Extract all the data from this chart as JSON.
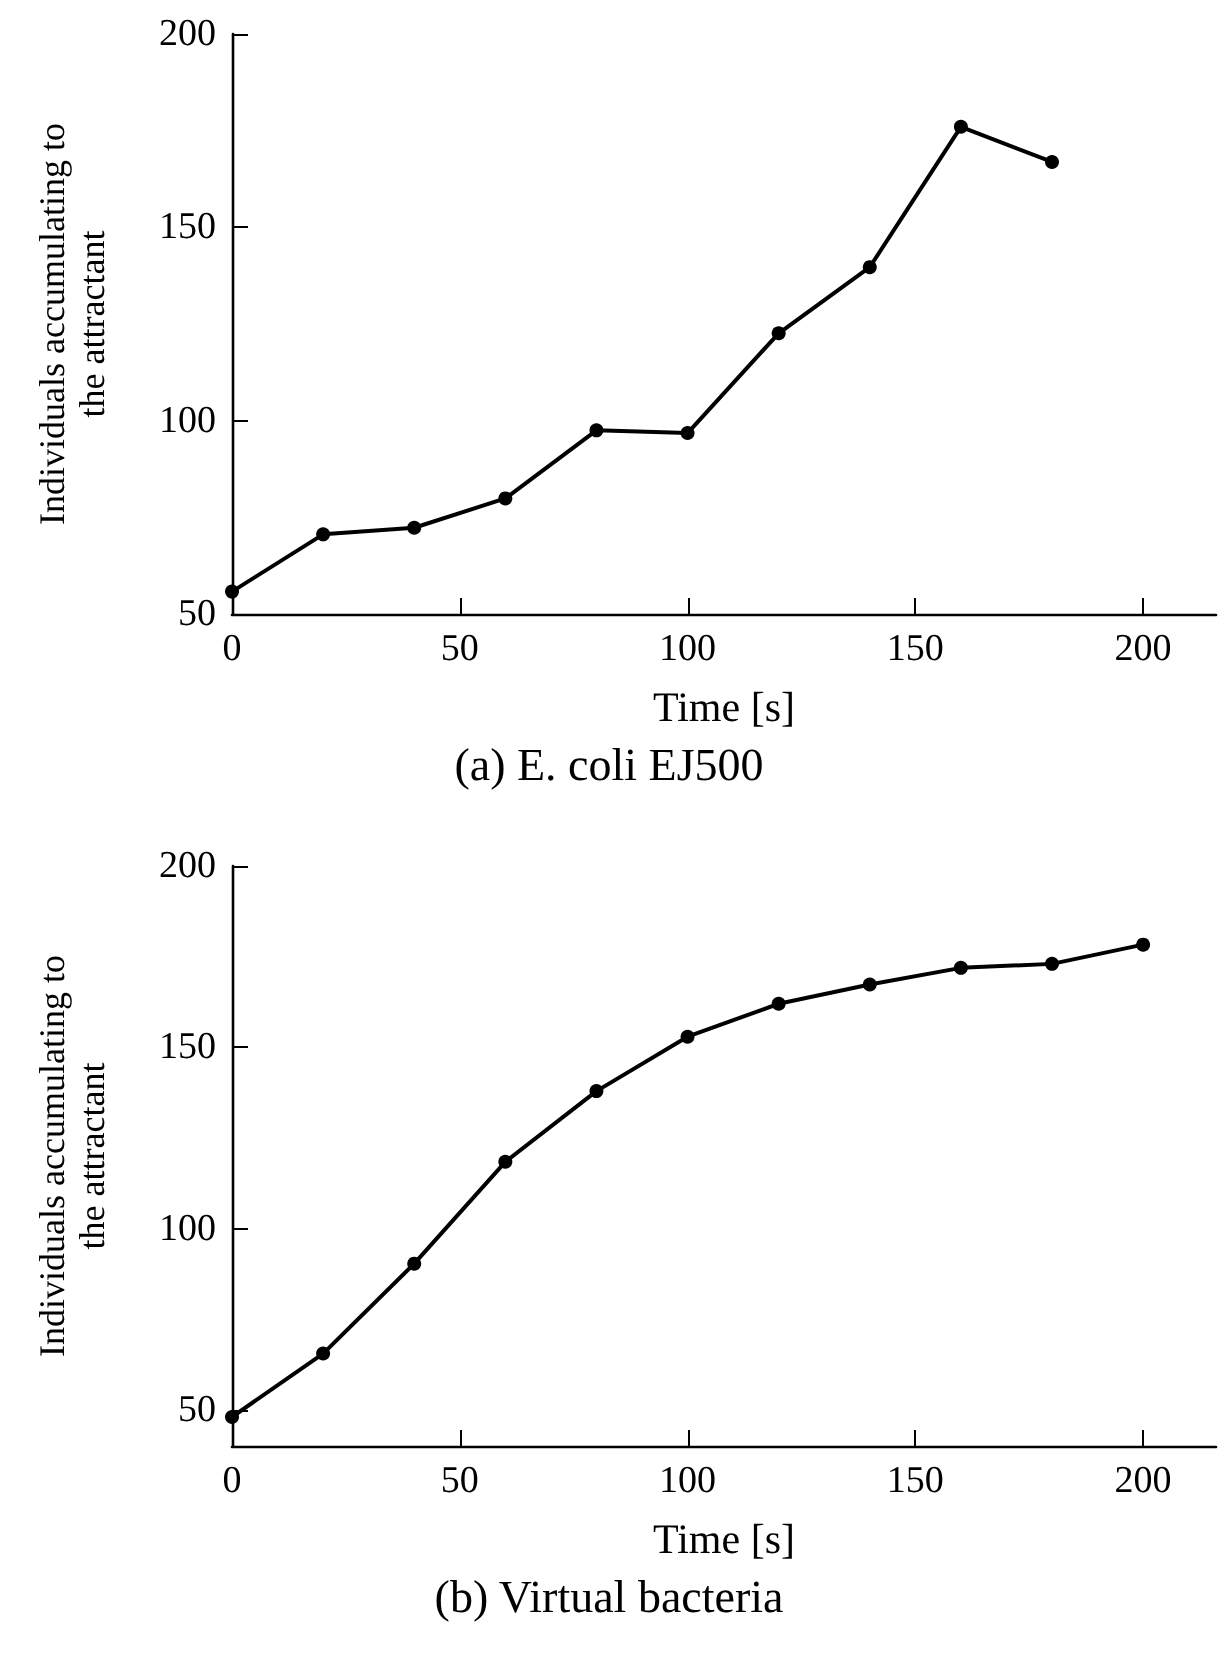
{
  "chart_data": [
    {
      "type": "line",
      "title": "(a) E. coli EJ500",
      "xlabel": "Time [s]",
      "ylabel": "Individuals accumulating to the attractant",
      "x": [
        0,
        20,
        40,
        60,
        80,
        100,
        120,
        140,
        160,
        180
      ],
      "series": [
        {
          "color": "#000000",
          "values": [
            55.8,
            70.6,
            72.3,
            79.9,
            97.5,
            96.8,
            122.6,
            139.7,
            176.0,
            166.9
          ]
        }
      ],
      "xlim": [
        0,
        216
      ],
      "xticks": [
        0,
        50,
        100,
        150,
        200
      ],
      "ylim": [
        50,
        200
      ],
      "yticks": [
        50,
        100,
        150,
        200
      ],
      "marker": "circle",
      "line_style": "solid"
    },
    {
      "type": "line",
      "title": "(b) Virtual bacteria",
      "xlabel": "Time [s]",
      "ylabel": "Individuals accumulating to the attractant",
      "x": [
        0,
        20,
        40,
        60,
        80,
        100,
        120,
        140,
        160,
        180,
        200
      ],
      "series": [
        {
          "color": "#000000",
          "values": [
            48,
            65.5,
            90.3,
            118.4,
            137.9,
            152.9,
            162.0,
            167.3,
            171.9,
            173.0,
            178.3
          ]
        }
      ],
      "xlim": [
        0,
        216
      ],
      "xticks": [
        0,
        50,
        100,
        150,
        200
      ],
      "ylim": [
        40,
        200
      ],
      "yticks": [
        50,
        100,
        150,
        200
      ],
      "marker": "circle",
      "line_style": "solid"
    }
  ]
}
